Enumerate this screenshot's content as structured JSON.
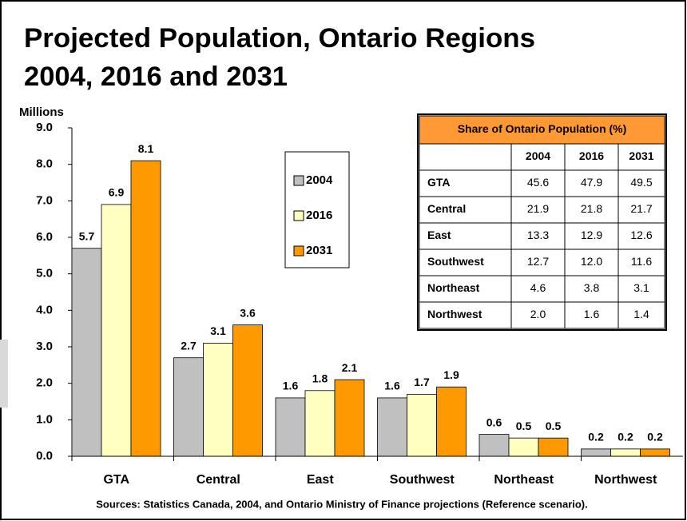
{
  "chart_data": {
    "type": "bar",
    "title": "Projected Population, Ontario Regions",
    "subtitle": "2004, 2016 and 2031",
    "y_label": "Millions",
    "source": "Sources: Statistics Canada, 2004, and Ontario Ministry of Finance projections (Reference scenario).",
    "categories": [
      "GTA",
      "Central",
      "East",
      "Southwest",
      "Northeast",
      "Northwest"
    ],
    "series": [
      {
        "name": "2004",
        "color": "#c0c0c0",
        "values": [
          5.7,
          2.7,
          1.6,
          1.6,
          0.6,
          0.2
        ]
      },
      {
        "name": "2016",
        "color": "#ffffc0",
        "values": [
          6.9,
          3.1,
          1.8,
          1.7,
          0.5,
          0.2
        ]
      },
      {
        "name": "2031",
        "color": "#ff9900",
        "values": [
          8.1,
          3.6,
          2.1,
          1.9,
          0.5,
          0.2
        ]
      }
    ],
    "ylim": [
      0,
      9
    ],
    "yticks": [
      {
        "value": 0,
        "label": "0.0"
      },
      {
        "value": 1,
        "label": "1.0"
      },
      {
        "value": 2,
        "label": "2.0"
      },
      {
        "value": 3,
        "label": "3.0"
      },
      {
        "value": 4,
        "label": "4.0"
      },
      {
        "value": 5,
        "label": "5.0"
      },
      {
        "value": 6,
        "label": "6.0"
      },
      {
        "value": 7,
        "label": "7.0"
      },
      {
        "value": 8,
        "label": "8.0"
      },
      {
        "value": 9,
        "label": "9.0"
      }
    ],
    "legend": "top-center"
  },
  "table": {
    "title": "Share of Ontario Population (%)",
    "columns": [
      "2004",
      "2016",
      "2031"
    ],
    "rows": [
      [
        "GTA",
        "45.6",
        "47.9",
        "49.5"
      ],
      [
        "Central",
        "21.9",
        "21.8",
        "21.7"
      ],
      [
        "East",
        "13.3",
        "12.9",
        "12.6"
      ],
      [
        "Southwest",
        "12.7",
        "12.0",
        "11.6"
      ],
      [
        "Northeast",
        "4.6",
        "3.8",
        "3.1"
      ],
      [
        "Northwest",
        "2.0",
        "1.6",
        "1.4"
      ]
    ]
  }
}
